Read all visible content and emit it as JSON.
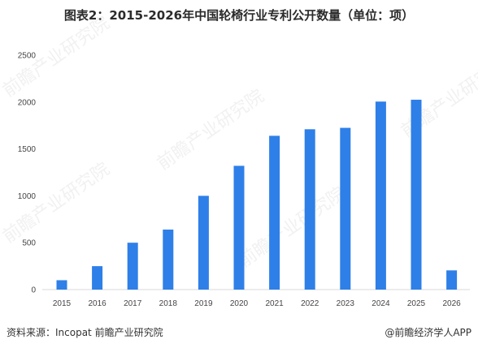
{
  "chart_data": {
    "type": "bar",
    "title": "图表2：2015-2026年中国轮椅行业专利公开数量（单位：项）",
    "categories": [
      "2015",
      "2016",
      "2017",
      "2018",
      "2019",
      "2020",
      "2021",
      "2022",
      "2023",
      "2024",
      "2025",
      "2026"
    ],
    "values": [
      100,
      250,
      500,
      640,
      1000,
      1320,
      1640,
      1710,
      1725,
      2005,
      2025,
      205
    ],
    "ylim": [
      0,
      2500
    ],
    "yticks": [
      0,
      500,
      1000,
      1500,
      2000,
      2500
    ],
    "xlabel": "",
    "ylabel": "",
    "grid": false,
    "bar_color": "#2e7fe8"
  },
  "footer": {
    "source": "资料来源：Incopat 前瞻产业研究院",
    "brand": "@前瞻经济学人APP"
  },
  "watermark": {
    "text": "前瞻产业研究院"
  }
}
